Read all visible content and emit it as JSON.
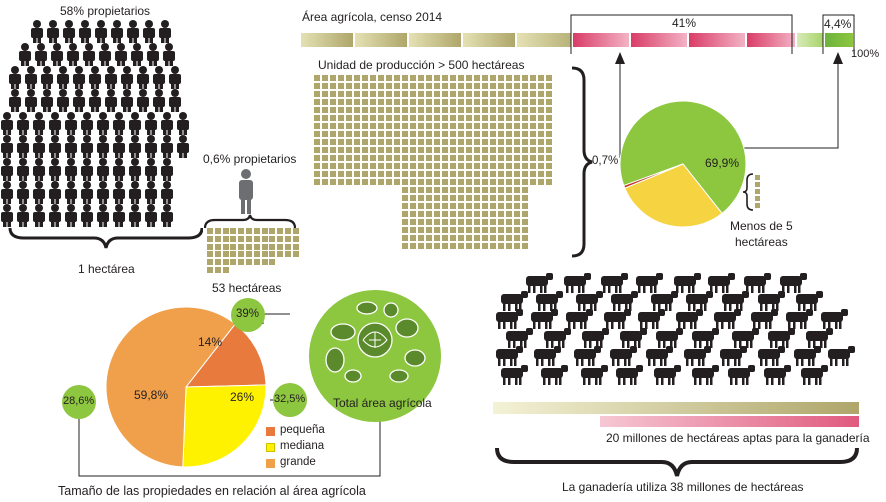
{
  "colors": {
    "olive": "#aea66a",
    "olive_light": "#dcd8a6",
    "pink": "#e05a7e",
    "pink_light": "#f3b3c5",
    "green": "#8dc63f",
    "green_light": "#c9e29c",
    "yellow": "#f5d341",
    "orange": "#f0a04b",
    "dark_orange": "#e77a3c",
    "bright_yellow": "#fff200",
    "people": "#231f20",
    "person_gray": "#6d6e71"
  },
  "top_left": {
    "owners_58": "58% propietarios",
    "owners_06": "0,6% propietarios",
    "one_hectare": "1 hectárea",
    "hectares_53": "53 hectáreas"
  },
  "census": {
    "title": "Área agrícola, censo 2014",
    "pct_41": "41%",
    "pct_44": "4,4%",
    "pct_100": "100%",
    "unit_500": "Unidad de producción > 500 hectáreas",
    "pct_07": "0,7%",
    "pct_699": "69,9%",
    "less_than_5": "Menos de 5",
    "hectareas": "hectáreas"
  },
  "chart_data": [
    {
      "type": "pie",
      "title": "",
      "categories": [
        "",
        "",
        ""
      ],
      "values": [
        69.9,
        29.4,
        0.7
      ],
      "colors": [
        "#8dc63f",
        "#f5d341",
        "#c0392b"
      ]
    },
    {
      "type": "pie",
      "title": "Tamaño de las propiedades en relación al área agrícola",
      "categories": [
        "pequeña",
        "mediana",
        "grande"
      ],
      "values": [
        14,
        26,
        59.8
      ],
      "colors": [
        "#e77a3c",
        "#fff200",
        "#f0a04b"
      ]
    }
  ],
  "size_chart": {
    "label_14": "14%",
    "label_26": "26%",
    "label_598": "59,8%",
    "badge_39": "39%",
    "badge_325": "32,5%",
    "badge_286": "28,6%",
    "total_area": "Total área agrícola",
    "caption": "Tamaño de las propiedades en relación al área agrícola",
    "legend": [
      "pequeña",
      "mediana",
      "grande"
    ]
  },
  "livestock": {
    "suitable": "20 millones de hectáreas aptas para la ganadería",
    "uses": "La ganadería utiliza 38 millones de hectáreas"
  }
}
